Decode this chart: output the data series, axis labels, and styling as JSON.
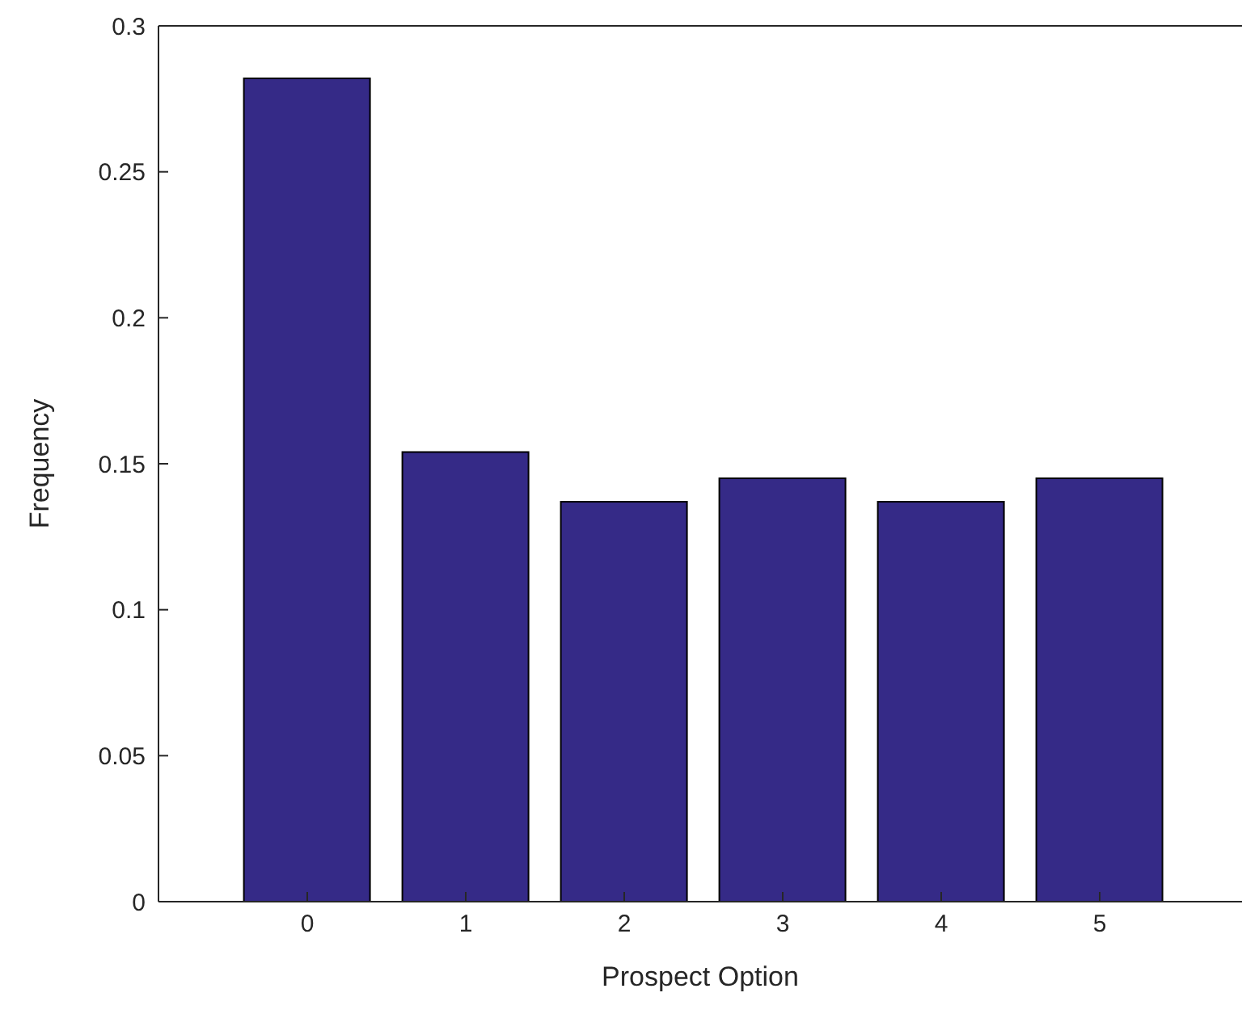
{
  "chart_data": {
    "type": "bar",
    "xlabel": "Prospect Option",
    "ylabel": "Frequency",
    "categories": [
      "0",
      "1",
      "2",
      "3",
      "4",
      "5"
    ],
    "values": [
      0.282,
      0.154,
      0.137,
      0.145,
      0.137,
      0.145
    ],
    "color": "#352a87",
    "ylim": [
      0,
      0.3
    ],
    "yticks": [
      0,
      0.05,
      0.1,
      0.15,
      0.2,
      0.25,
      0.3
    ],
    "grid": false,
    "legend": false
  }
}
